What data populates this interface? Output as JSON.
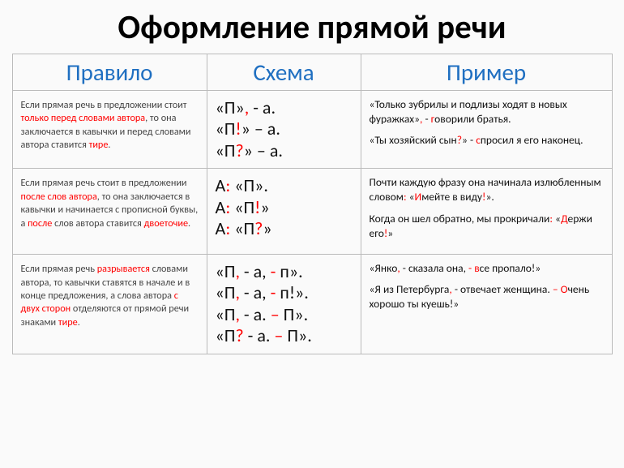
{
  "title": "Оформление прямой речи",
  "headers": {
    "rule": "Правило",
    "scheme": "Схема",
    "example": "Пример"
  },
  "rows": [
    {
      "rule_html": "Если прямая речь в предложении стоит <span class='red'>только перед словами автора</span>, то она заключается в кавычки и перед словами автора ставится <span class='red'>тире</span>.",
      "scheme_html": "«П»<span class='red'>,</span> - а.<br>«П<span class='red'>!</span>» – а.<br>«П<span class='red'>?</span>» – а.",
      "examples": [
        "«Только зубрилы и подлизы ходят в новых фуражках»<span class='red'>,</span> - <span class='red'>г</span>оворили братья.",
        "«Ты хозяйский сын<span class='red'>?</span>» - <span class='red'>с</span>просил я его наконец."
      ]
    },
    {
      "rule_html": "Если прямая речь стоит в предложении <span class='red'>после слов автора</span>, то она заключается в кавычки и начинается с прописной буквы, а <span class='red'>после</span> слов автора ставится <span class='red'>двоеточие</span>.",
      "scheme_html": "А<span class='red'>:</span> «П».<br>А<span class='red'>:</span> «П<span class='red'>!</span>»<br>А<span class='red'>:</span> «П<span class='red'>?</span>»",
      "examples": [
        "Почти каждую фразу она начинала излюбленным словом<span class='red'>:</span> «<span class='red'>И</span>мейте в виду<span class='red'>!</span>».",
        "Когда он шел обратно, мы прокричали<span class='red'>:</span> «<span class='red'>Д</span>ержи его<span class='red'>!</span>»"
      ]
    },
    {
      "rule_html": "Если прямая речь <span class='red'>разрывается</span> словами автора, то кавычки ставятся в начале и в конце предложения, а слова автора <span class='red'>с двух сторон</span> отделяются от прямой речи знаками <span class='red'>тире</span>.",
      "scheme_html": "«П<span class='red'>,</span> - а, <span class='red'>-</span> п».<br>«П<span class='red'>,</span> - а, <span class='red'>-</span> п!».<br>«П<span class='red'>,</span> - а. <span class='red'>–</span> П».<br>«П<span class='red'>?</span> - а. <span class='red'>–</span> П».",
      "examples": [
        "«Янко<span class='red'>,</span> - сказала она, <span class='red'>-</span> <span class='red'>в</span>се пропало!»",
        "«Я из Петербурга<span class='red'>,</span> - отвечает женщина. <span class='red'>–</span> <span class='red'>О</span>чень хорошо ты куешь!»"
      ]
    }
  ]
}
